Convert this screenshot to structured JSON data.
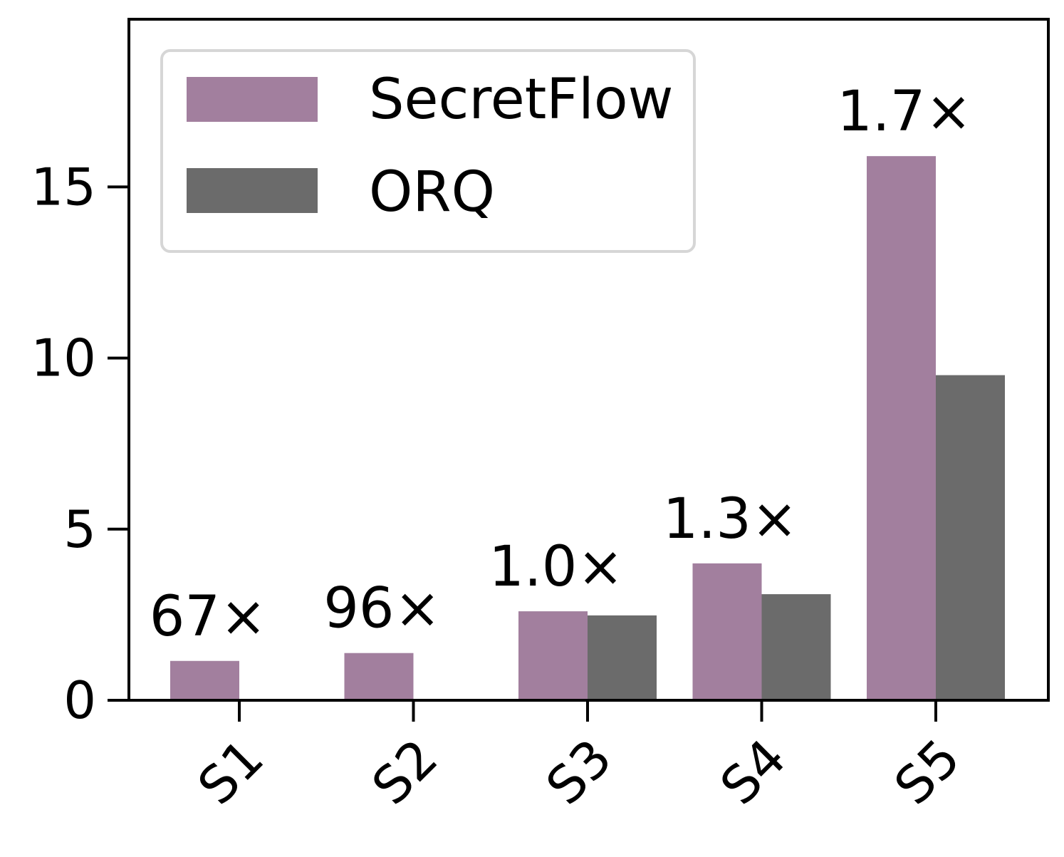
{
  "chart_data": {
    "type": "bar",
    "title": "",
    "xlabel": "",
    "ylabel": "",
    "categories": [
      "S1",
      "S2",
      "S3",
      "S4",
      "S5"
    ],
    "ylim": [
      0,
      19.9
    ],
    "yticks": [
      0,
      5,
      10,
      15
    ],
    "ytick_labels": [
      "0",
      "5",
      "10",
      "15"
    ],
    "series": [
      {
        "name": "SecretFlow",
        "color": "#a27f9e",
        "values": [
          1.15,
          1.38,
          2.6,
          4.0,
          15.9
        ]
      },
      {
        "name": "ORQ",
        "color": "#6b6b6b",
        "values": [
          null,
          null,
          2.48,
          3.1,
          9.5
        ]
      }
    ],
    "annotations": [
      "67×",
      "96×",
      "1.0×",
      "1.3×",
      "1.7×"
    ],
    "legend": {
      "position": "top-left",
      "entries": [
        "SecretFlow",
        "ORQ"
      ]
    },
    "grid": false
  }
}
